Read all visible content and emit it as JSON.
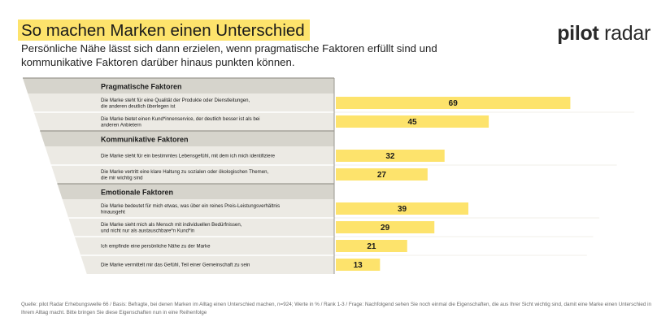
{
  "title": "So machen Marken einen Unterschied",
  "logo": {
    "part1": "pilot",
    "part2": "radar"
  },
  "subtitle": "Persönliche Nähe lässt sich dann erzielen, wenn pragmatische Faktoren erfüllt sind und kommunikative Faktoren darüber hinaus punkten können.",
  "footer": "Quelle: pilot Radar Erhebungswelle 66 / Basis: Befragte, bei denen Marken im Alltag einen Unterschied machen, n=924; Werte in % / Rank 1-3 / Frage: Nachfolgend sehen Sie noch einmal die Eigenschaften, die aus Ihrer Sicht wichtig sind, damit eine Marke einen Unterschied in Ihrem Alltag macht. Bitte bringen Sie diese Eigenschaften nun in eine Reihenfolge",
  "colors": {
    "bar": "#fde36c",
    "header_fill": "#d6d4cc",
    "row_fill": "#eceae4",
    "header_line": "#9a978f",
    "divider": "#ffffff",
    "text": "#1a1a1a"
  },
  "chart_data": {
    "type": "bar",
    "orientation": "horizontal",
    "unit": "%",
    "xlim": [
      0,
      100
    ],
    "groups": [
      {
        "name": "Pragmatische Faktoren",
        "items": [
          {
            "label": "Die Marke steht für eine Qualität der Produkte oder Dienstleitungen,\ndie anderen deutlich überlegen ist",
            "value": 69
          },
          {
            "label": "Die Marke bietet einen Kund*innenservice, der deutlich besser ist als bei\nanderen Anbietern",
            "value": 45
          }
        ]
      },
      {
        "name": "Kommunikative Faktoren",
        "items": [
          {
            "label": "Die Marke steht für ein bestimmtes Lebensgefühl, mit dem ich mich identifiziere",
            "value": 32
          },
          {
            "label": "Die Marke vertritt eine klare Haltung zu sozialen oder ökologischen Themen,\ndie mir wichtig sind",
            "value": 27
          }
        ]
      },
      {
        "name": "Emotionale Faktoren",
        "items": [
          {
            "label": "Die Marke bedeutet für mich etwas, was über ein reines Preis-Leistungsverhältnis\nhinausgeht",
            "value": 39
          },
          {
            "label": "Die Marke sieht mich als Mensch mit individuellen Bedürfnissen,\nund nicht nur als austauschbare*n Kund*in",
            "value": 29
          },
          {
            "label": "Ich empfinde eine persönliche Nähe zu der Marke",
            "value": 21
          },
          {
            "label": "Die Marke vermittelt mir das Gefühl, Teil einer Gemeinschaft zu sein",
            "value": 13
          }
        ]
      }
    ]
  }
}
